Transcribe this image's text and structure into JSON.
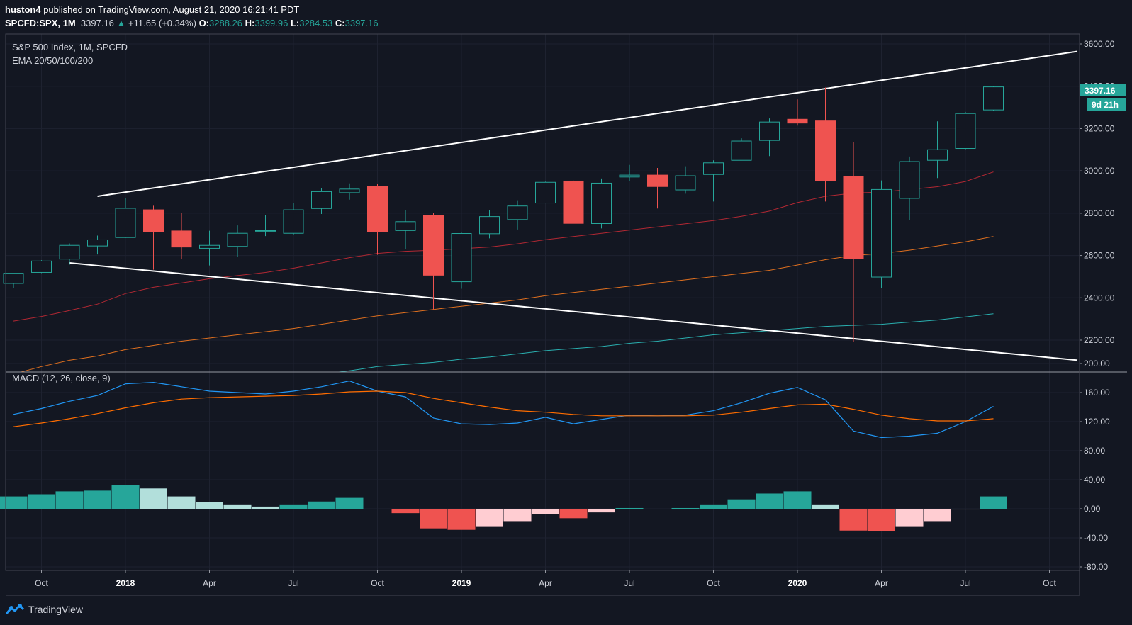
{
  "header": {
    "publisher": "huston4",
    "published_text": "published on TradingView.com, August 21, 2020 16:21:41 PDT",
    "symbol": "SPCFD:SPX, 1M",
    "last": "3397.16",
    "change": "+11.65 (+0.34%)",
    "o_label": "O:",
    "o_value": "3288.26",
    "h_label": "H:",
    "h_value": "3399.96",
    "l_label": "L:",
    "l_value": "3284.53",
    "c_label": "C:",
    "c_value": "3397.16"
  },
  "legend": {
    "title": "S&P 500 Index, 1M, SPCFD",
    "ema": "EMA 20/50/100/200",
    "macd": "MACD (12, 26, close, 9)"
  },
  "price_tag": {
    "price": "3397.16",
    "countdown": "9d 21h"
  },
  "footer": {
    "brand": "TradingView"
  },
  "colors": {
    "up": "#26a69a",
    "down": "#ef5350",
    "ema20": "#b22833",
    "ema50": "#e0701f",
    "ema100": "#2ab0b0",
    "macd": "#2196f3",
    "signal": "#ff6d00",
    "hist_up": "#26a69a",
    "hist_up_fade": "#b2dfdb",
    "hist_down": "#ef5350",
    "hist_down_fade": "#ffcdd2"
  },
  "chart_data": [
    {
      "type": "candlestick",
      "title": "S&P 500 Index, 1M, SPCFD",
      "x": [
        "2017-09",
        "2017-10",
        "2017-11",
        "2017-12",
        "2018-01",
        "2018-02",
        "2018-03",
        "2018-04",
        "2018-05",
        "2018-06",
        "2018-07",
        "2018-08",
        "2018-09",
        "2018-10",
        "2018-11",
        "2018-12",
        "2019-01",
        "2019-02",
        "2019-03",
        "2019-04",
        "2019-05",
        "2019-06",
        "2019-07",
        "2019-08",
        "2019-09",
        "2019-10",
        "2019-11",
        "2019-12",
        "2020-01",
        "2020-02",
        "2020-03",
        "2020-04",
        "2020-05",
        "2020-06",
        "2020-07",
        "2020-08"
      ],
      "ohlc": [
        [
          2468,
          2516,
          2446,
          2516
        ],
        [
          2520,
          2578,
          2517,
          2574
        ],
        [
          2583,
          2657,
          2556,
          2648
        ],
        [
          2645,
          2694,
          2605,
          2674
        ],
        [
          2685,
          2873,
          2683,
          2823
        ],
        [
          2816,
          2835,
          2533,
          2714
        ],
        [
          2716,
          2800,
          2585,
          2640
        ],
        [
          2634,
          2717,
          2553,
          2648
        ],
        [
          2643,
          2742,
          2595,
          2705
        ],
        [
          2718,
          2791,
          2692,
          2718
        ],
        [
          2705,
          2848,
          2699,
          2816
        ],
        [
          2822,
          2917,
          2796,
          2902
        ],
        [
          2897,
          2941,
          2864,
          2914
        ],
        [
          2926,
          2940,
          2603,
          2711
        ],
        [
          2718,
          2815,
          2632,
          2760
        ],
        [
          2790,
          2800,
          2346,
          2507
        ],
        [
          2476,
          2708,
          2443,
          2704
        ],
        [
          2703,
          2814,
          2681,
          2784
        ],
        [
          2770,
          2861,
          2723,
          2834
        ],
        [
          2848,
          2949,
          2848,
          2946
        ],
        [
          2952,
          2954,
          2751,
          2752
        ],
        [
          2751,
          2964,
          2728,
          2942
        ],
        [
          2971,
          3028,
          2953,
          2980
        ],
        [
          2980,
          3014,
          2822,
          2926
        ],
        [
          2910,
          3022,
          2892,
          2977
        ],
        [
          2983,
          3050,
          2855,
          3038
        ],
        [
          3050,
          3154,
          3050,
          3141
        ],
        [
          3144,
          3248,
          3070,
          3231
        ],
        [
          3244,
          3338,
          3214,
          3226
        ],
        [
          3236,
          3394,
          2855,
          2954
        ],
        [
          2974,
          3136,
          2192,
          2585
        ],
        [
          2498,
          2955,
          2447,
          2912
        ],
        [
          2870,
          3068,
          2766,
          3044
        ],
        [
          3050,
          3234,
          2966,
          3100
        ],
        [
          3106,
          3279,
          3102,
          3271
        ],
        [
          3288,
          3400,
          3285,
          3397
        ]
      ],
      "ema20": [
        2290,
        2312,
        2340,
        2370,
        2420,
        2450,
        2470,
        2490,
        2505,
        2520,
        2540,
        2565,
        2590,
        2610,
        2620,
        2625,
        2632,
        2640,
        2655,
        2675,
        2690,
        2705,
        2720,
        2735,
        2750,
        2765,
        2785,
        2810,
        2850,
        2880,
        2895,
        2900,
        2912,
        2925,
        2950,
        2995
      ],
      "ema50": [
        2040,
        2075,
        2105,
        2125,
        2155,
        2175,
        2195,
        2210,
        2225,
        2240,
        2255,
        2275,
        2295,
        2315,
        2330,
        2345,
        2360,
        2375,
        2390,
        2410,
        2425,
        2440,
        2455,
        2470,
        2485,
        2500,
        2515,
        2530,
        2555,
        2580,
        2600,
        2610,
        2625,
        2645,
        2665,
        2690
      ],
      "ema100": [
        1850,
        1870,
        1890,
        1910,
        1935,
        1950,
        1965,
        1980,
        1995,
        2010,
        2025,
        2040,
        2055,
        2075,
        2085,
        2095,
        2110,
        2120,
        2135,
        2150,
        2160,
        2170,
        2185,
        2195,
        2210,
        2225,
        2235,
        2245,
        2255,
        2265,
        2270,
        2275,
        2285,
        2295,
        2310,
        2325
      ],
      "trendlines": [
        {
          "from": [
            "2017-12",
            2880
          ],
          "to": [
            "2020-11",
            3565
          ]
        },
        {
          "from": [
            "2017-11",
            2565
          ],
          "to": [
            "2020-11",
            2105
          ]
        }
      ],
      "ylim": [
        2150,
        3650
      ],
      "ticks": [
        "2200.00",
        "2400.00",
        "2600.00",
        "2800.00",
        "3000.00",
        "3200.00",
        "3400.00",
        "3600.00"
      ]
    },
    {
      "type": "line",
      "title": "MACD (12, 26, close, 9)",
      "x": [
        "2017-09",
        "2017-10",
        "2017-11",
        "2017-12",
        "2018-01",
        "2018-02",
        "2018-03",
        "2018-04",
        "2018-05",
        "2018-06",
        "2018-07",
        "2018-08",
        "2018-09",
        "2018-10",
        "2018-11",
        "2018-12",
        "2019-01",
        "2019-02",
        "2019-03",
        "2019-04",
        "2019-05",
        "2019-06",
        "2019-07",
        "2019-08",
        "2019-09",
        "2019-10",
        "2019-11",
        "2019-12",
        "2020-01",
        "2020-02",
        "2020-03",
        "2020-04",
        "2020-05",
        "2020-06",
        "2020-07",
        "2020-08"
      ],
      "macd": [
        130,
        138,
        148,
        156,
        172,
        174,
        168,
        162,
        160,
        158,
        162,
        168,
        176,
        162,
        154,
        125,
        117,
        116,
        118,
        126,
        117,
        123,
        129,
        128,
        129,
        135,
        146,
        159,
        167,
        150,
        107,
        98,
        100,
        104,
        120,
        141
      ],
      "signal": [
        113,
        118,
        124,
        131,
        139,
        146,
        151,
        153,
        154,
        155,
        156,
        158,
        161,
        162,
        160,
        152,
        146,
        140,
        135,
        133,
        130,
        128,
        128,
        128,
        128,
        129,
        133,
        138,
        143,
        144,
        137,
        129,
        124,
        121,
        121,
        124
      ],
      "histogram": [
        17,
        20,
        24,
        25,
        33,
        28,
        17,
        9,
        6,
        3,
        6,
        10,
        15,
        0,
        -6,
        -27,
        -29,
        -24,
        -17,
        -7,
        -13,
        -5,
        1,
        0,
        1,
        6,
        13,
        21,
        24,
        6,
        -30,
        -31,
        -24,
        -17,
        -1,
        17
      ],
      "ylim": [
        -90,
        210
      ],
      "ticks": [
        "-80.00",
        "-40.00",
        "0.00",
        "40.00",
        "80.00",
        "120.00",
        "160.00",
        "200.00"
      ]
    }
  ],
  "xaxis": {
    "labels": [
      {
        "m": "2017-10",
        "t": "Oct",
        "yr": false
      },
      {
        "m": "2018-01",
        "t": "2018",
        "yr": true
      },
      {
        "m": "2018-04",
        "t": "Apr",
        "yr": false
      },
      {
        "m": "2018-07",
        "t": "Jul",
        "yr": false
      },
      {
        "m": "2018-10",
        "t": "Oct",
        "yr": false
      },
      {
        "m": "2019-01",
        "t": "2019",
        "yr": true
      },
      {
        "m": "2019-04",
        "t": "Apr",
        "yr": false
      },
      {
        "m": "2019-07",
        "t": "Jul",
        "yr": false
      },
      {
        "m": "2019-10",
        "t": "Oct",
        "yr": false
      },
      {
        "m": "2020-01",
        "t": "2020",
        "yr": true
      },
      {
        "m": "2020-04",
        "t": "Apr",
        "yr": false
      },
      {
        "m": "2020-07",
        "t": "Jul",
        "yr": false
      },
      {
        "m": "2020-10",
        "t": "Oct",
        "yr": false
      }
    ]
  }
}
